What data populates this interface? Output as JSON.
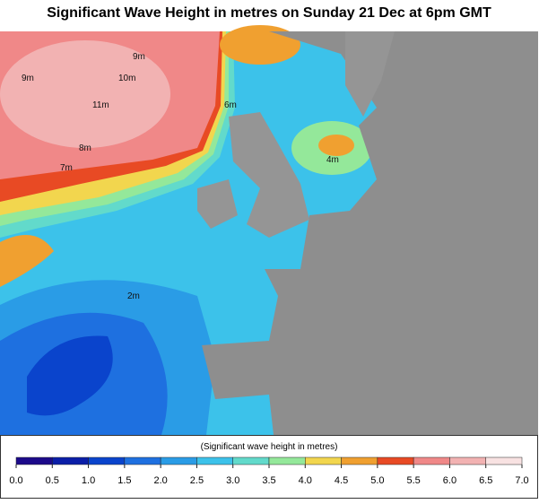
{
  "title": "Significant Wave Height in metres on Sunday 21 Dec at 6pm GMT",
  "contour_labels": [
    "9m",
    "10m",
    "11m",
    "9m",
    "8m",
    "7m",
    "6m",
    "4m",
    "2m"
  ],
  "colorbar": {
    "label": "(Significant wave height in metres)",
    "range": [
      0,
      7
    ],
    "ticks": [
      {
        "value": 0,
        "label": "0.0"
      },
      {
        "value": 0.5,
        "label": "0.5"
      },
      {
        "value": 1,
        "label": "1.0"
      },
      {
        "value": 1.5,
        "label": "1.5"
      },
      {
        "value": 2,
        "label": "2.0"
      },
      {
        "value": 2.5,
        "label": "2.5"
      },
      {
        "value": 3,
        "label": "3.0"
      },
      {
        "value": 3.5,
        "label": "3.5"
      },
      {
        "value": 4,
        "label": "4.0"
      },
      {
        "value": 4.5,
        "label": "4.5"
      },
      {
        "value": 5,
        "label": "5.0"
      },
      {
        "value": 5.5,
        "label": "5.5"
      },
      {
        "value": 6,
        "label": "6.0"
      },
      {
        "value": 6.5,
        "label": "6.5"
      },
      {
        "value": 7,
        "label": "7.0"
      }
    ],
    "colors": [
      "#1c0a8a",
      "#0b1ea8",
      "#0a44cc",
      "#1e70e0",
      "#2a9ce6",
      "#3cc2ea",
      "#62dacb",
      "#94e89a",
      "#f2d64e",
      "#f0a030",
      "#e84a24",
      "#f08888",
      "#f2b2b2",
      "#f8e2e2"
    ]
  }
}
